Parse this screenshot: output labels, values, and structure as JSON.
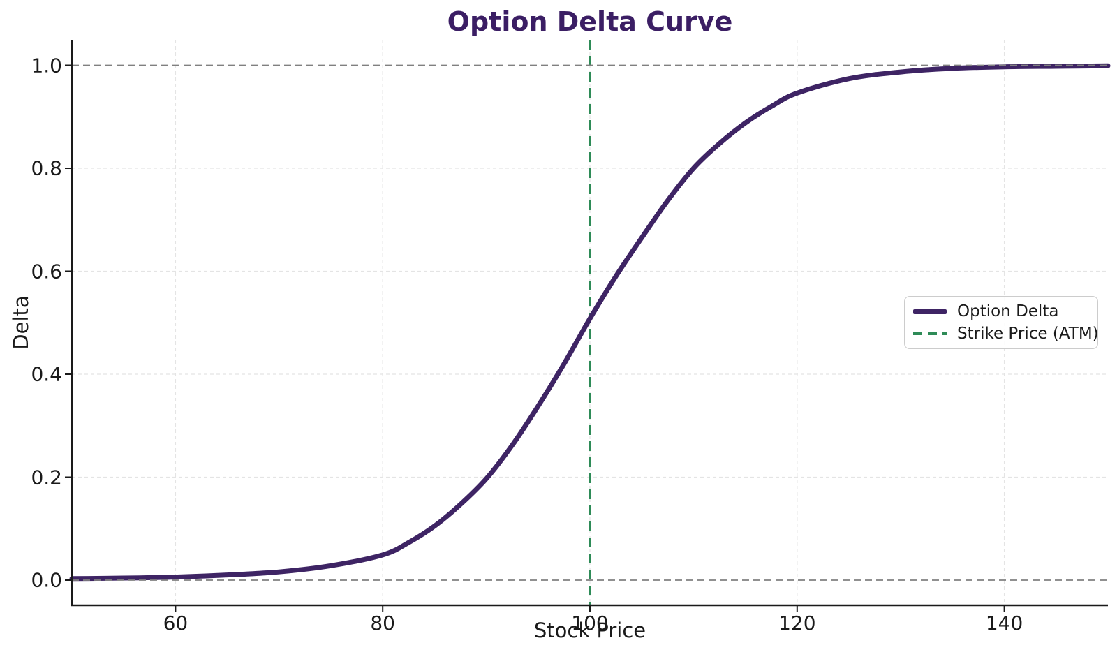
{
  "title": "Option Delta Curve",
  "axes": {
    "xlabel": "Stock Price",
    "ylabel": "Delta",
    "x_ticks": [
      "60",
      "80",
      "100",
      "120",
      "140"
    ],
    "y_ticks": [
      "0.0",
      "0.2",
      "0.4",
      "0.6",
      "0.8",
      "1.0"
    ]
  },
  "legend": {
    "items": [
      {
        "label": "Option Delta",
        "style": "solid"
      },
      {
        "label": "Strike Price (ATM)",
        "style": "dashed"
      }
    ]
  },
  "colors": {
    "curve": "#3E2464",
    "strike": "#2E8B57",
    "reference": "#808080",
    "grid": "#e4e4e4",
    "title": "#3b1e64",
    "text": "#1a1a1a",
    "spine": "#1a1a1a",
    "legend_border": "#cccccc"
  },
  "chart_data": {
    "type": "line",
    "title": "Option Delta Curve",
    "xlabel": "Stock Price",
    "ylabel": "Delta",
    "xlim": [
      50,
      150
    ],
    "ylim": [
      -0.05,
      1.05
    ],
    "x_ticks": [
      60,
      80,
      100,
      120,
      140
    ],
    "y_ticks": [
      0.0,
      0.2,
      0.4,
      0.6,
      0.8,
      1.0
    ],
    "grid": true,
    "legend_position": "center right",
    "series": [
      {
        "name": "Option Delta",
        "type": "line",
        "x": [
          50,
          55,
          60,
          65,
          70,
          75,
          80,
          82.5,
          85,
          87.5,
          90,
          92.5,
          95,
          97.5,
          100,
          102.5,
          105,
          107.5,
          110,
          112.5,
          115,
          117.5,
          120,
          125,
          130,
          135,
          140,
          145,
          150
        ],
        "y": [
          0.003,
          0.004,
          0.006,
          0.01,
          0.016,
          0.028,
          0.049,
          0.073,
          0.105,
          0.147,
          0.197,
          0.262,
          0.338,
          0.42,
          0.508,
          0.59,
          0.665,
          0.737,
          0.8,
          0.848,
          0.888,
          0.92,
          0.946,
          0.974,
          0.987,
          0.994,
          0.997,
          0.998,
          0.999
        ]
      },
      {
        "name": "Strike Price (ATM)",
        "type": "vline",
        "x": 100
      }
    ],
    "reference_hlines": [
      0.0,
      1.0
    ]
  }
}
